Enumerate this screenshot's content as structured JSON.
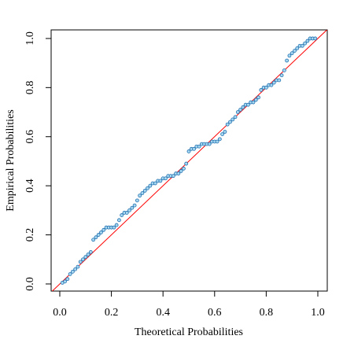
{
  "chart_data": {
    "type": "scatter",
    "x_label": "Theoretical Probabilities",
    "y_label": "Empirical Probabilities",
    "color": "#1f6fb0",
    "fill": "#a8d8f0",
    "reference_line": {
      "intercept": 0,
      "slope": 1,
      "color": "#ff0000"
    },
    "xlim": [
      -0.0335,
      1.0366
    ],
    "ylim": [
      -0.029,
      1.035
    ],
    "xticks": [
      {
        "value": 0,
        "label": "0.0"
      },
      0.2,
      0.4,
      0.6,
      0.8,
      {
        "value": 1,
        "label": "1.0"
      }
    ],
    "yticks": [
      {
        "value": 0,
        "label": "0.0"
      },
      0.2,
      0.4,
      0.6,
      0.8,
      {
        "value": 1,
        "label": "1.0"
      }
    ],
    "x": [
      0.01,
      0.02,
      0.03,
      0.04,
      0.05,
      0.06,
      0.07,
      0.08,
      0.09,
      0.1,
      0.11,
      0.12,
      0.13,
      0.14,
      0.15,
      0.16,
      0.17,
      0.18,
      0.19,
      0.2,
      0.21,
      0.22,
      0.23,
      0.24,
      0.25,
      0.26,
      0.27,
      0.28,
      0.29,
      0.3,
      0.31,
      0.32,
      0.33,
      0.34,
      0.35,
      0.36,
      0.37,
      0.38,
      0.39,
      0.4,
      0.41,
      0.42,
      0.43,
      0.44,
      0.45,
      0.46,
      0.47,
      0.48,
      0.49,
      0.5,
      0.51,
      0.52,
      0.53,
      0.54,
      0.55,
      0.56,
      0.57,
      0.58,
      0.59,
      0.6,
      0.61,
      0.62,
      0.63,
      0.64,
      0.65,
      0.66,
      0.67,
      0.68,
      0.69,
      0.7,
      0.71,
      0.72,
      0.73,
      0.74,
      0.75,
      0.76,
      0.77,
      0.78,
      0.79,
      0.8,
      0.81,
      0.82,
      0.83,
      0.84,
      0.85,
      0.86,
      0.87,
      0.88,
      0.89,
      0.9,
      0.91,
      0.92,
      0.93,
      0.94,
      0.95,
      0.96,
      0.97,
      0.98,
      0.99
    ],
    "values": [
      0.005,
      0.01,
      0.02,
      0.04,
      0.05,
      0.06,
      0.07,
      0.09,
      0.1,
      0.11,
      0.12,
      0.13,
      0.18,
      0.19,
      0.2,
      0.21,
      0.22,
      0.23,
      0.23,
      0.23,
      0.23,
      0.24,
      0.26,
      0.28,
      0.29,
      0.29,
      0.3,
      0.31,
      0.32,
      0.34,
      0.36,
      0.37,
      0.38,
      0.39,
      0.4,
      0.41,
      0.41,
      0.42,
      0.42,
      0.43,
      0.43,
      0.44,
      0.44,
      0.44,
      0.45,
      0.45,
      0.46,
      0.47,
      0.49,
      0.54,
      0.55,
      0.55,
      0.56,
      0.56,
      0.57,
      0.57,
      0.57,
      0.57,
      0.58,
      0.58,
      0.58,
      0.59,
      0.61,
      0.62,
      0.65,
      0.66,
      0.67,
      0.68,
      0.7,
      0.71,
      0.72,
      0.73,
      0.73,
      0.74,
      0.74,
      0.75,
      0.76,
      0.79,
      0.8,
      0.8,
      0.81,
      0.81,
      0.82,
      0.83,
      0.83,
      0.85,
      0.87,
      0.91,
      0.93,
      0.94,
      0.95,
      0.96,
      0.97,
      0.97,
      0.98,
      0.99,
      1.0,
      1.0,
      1.0
    ]
  }
}
